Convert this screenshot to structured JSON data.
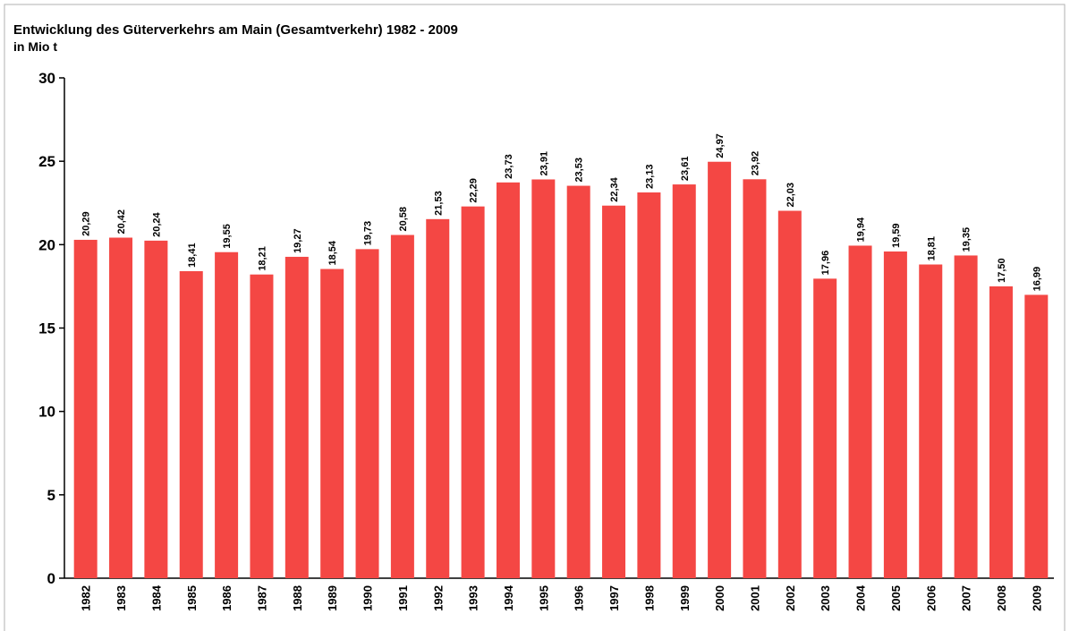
{
  "chart_data": {
    "type": "bar",
    "title": "Entwicklung des Güterverkehrs am Main (Gesamtverkehr) 1982 - 2009",
    "subtitle": "in Mio t",
    "categories": [
      "1982",
      "1983",
      "1984",
      "1985",
      "1986",
      "1987",
      "1988",
      "1989",
      "1990",
      "1991",
      "1992",
      "1993",
      "1994",
      "1995",
      "1996",
      "1997",
      "1998",
      "1999",
      "2000",
      "2001",
      "2002",
      "2003",
      "2004",
      "2005",
      "2006",
      "2007",
      "2008",
      "2009"
    ],
    "values": [
      20.29,
      20.42,
      20.24,
      18.41,
      19.55,
      18.21,
      19.27,
      18.54,
      19.73,
      20.58,
      21.53,
      22.29,
      23.73,
      23.91,
      23.53,
      22.34,
      23.13,
      23.61,
      24.97,
      23.92,
      22.03,
      17.96,
      19.94,
      19.59,
      18.81,
      19.35,
      17.5,
      16.99
    ],
    "value_labels": [
      "20,29",
      "20,42",
      "20,24",
      "18,41",
      "19,55",
      "18,21",
      "19,27",
      "18,54",
      "19,73",
      "20,58",
      "21,53",
      "22,29",
      "23,73",
      "23,91",
      "23,53",
      "22,34",
      "23,13",
      "23,61",
      "24,97",
      "23,92",
      "22,03",
      "17,96",
      "19,94",
      "19,59",
      "18,81",
      "19,35",
      "17,50",
      "16,99"
    ],
    "color": "#f44744",
    "ylim": [
      0,
      30
    ],
    "yticks": [
      0,
      5,
      10,
      15,
      20,
      25,
      30
    ],
    "grid": false
  }
}
